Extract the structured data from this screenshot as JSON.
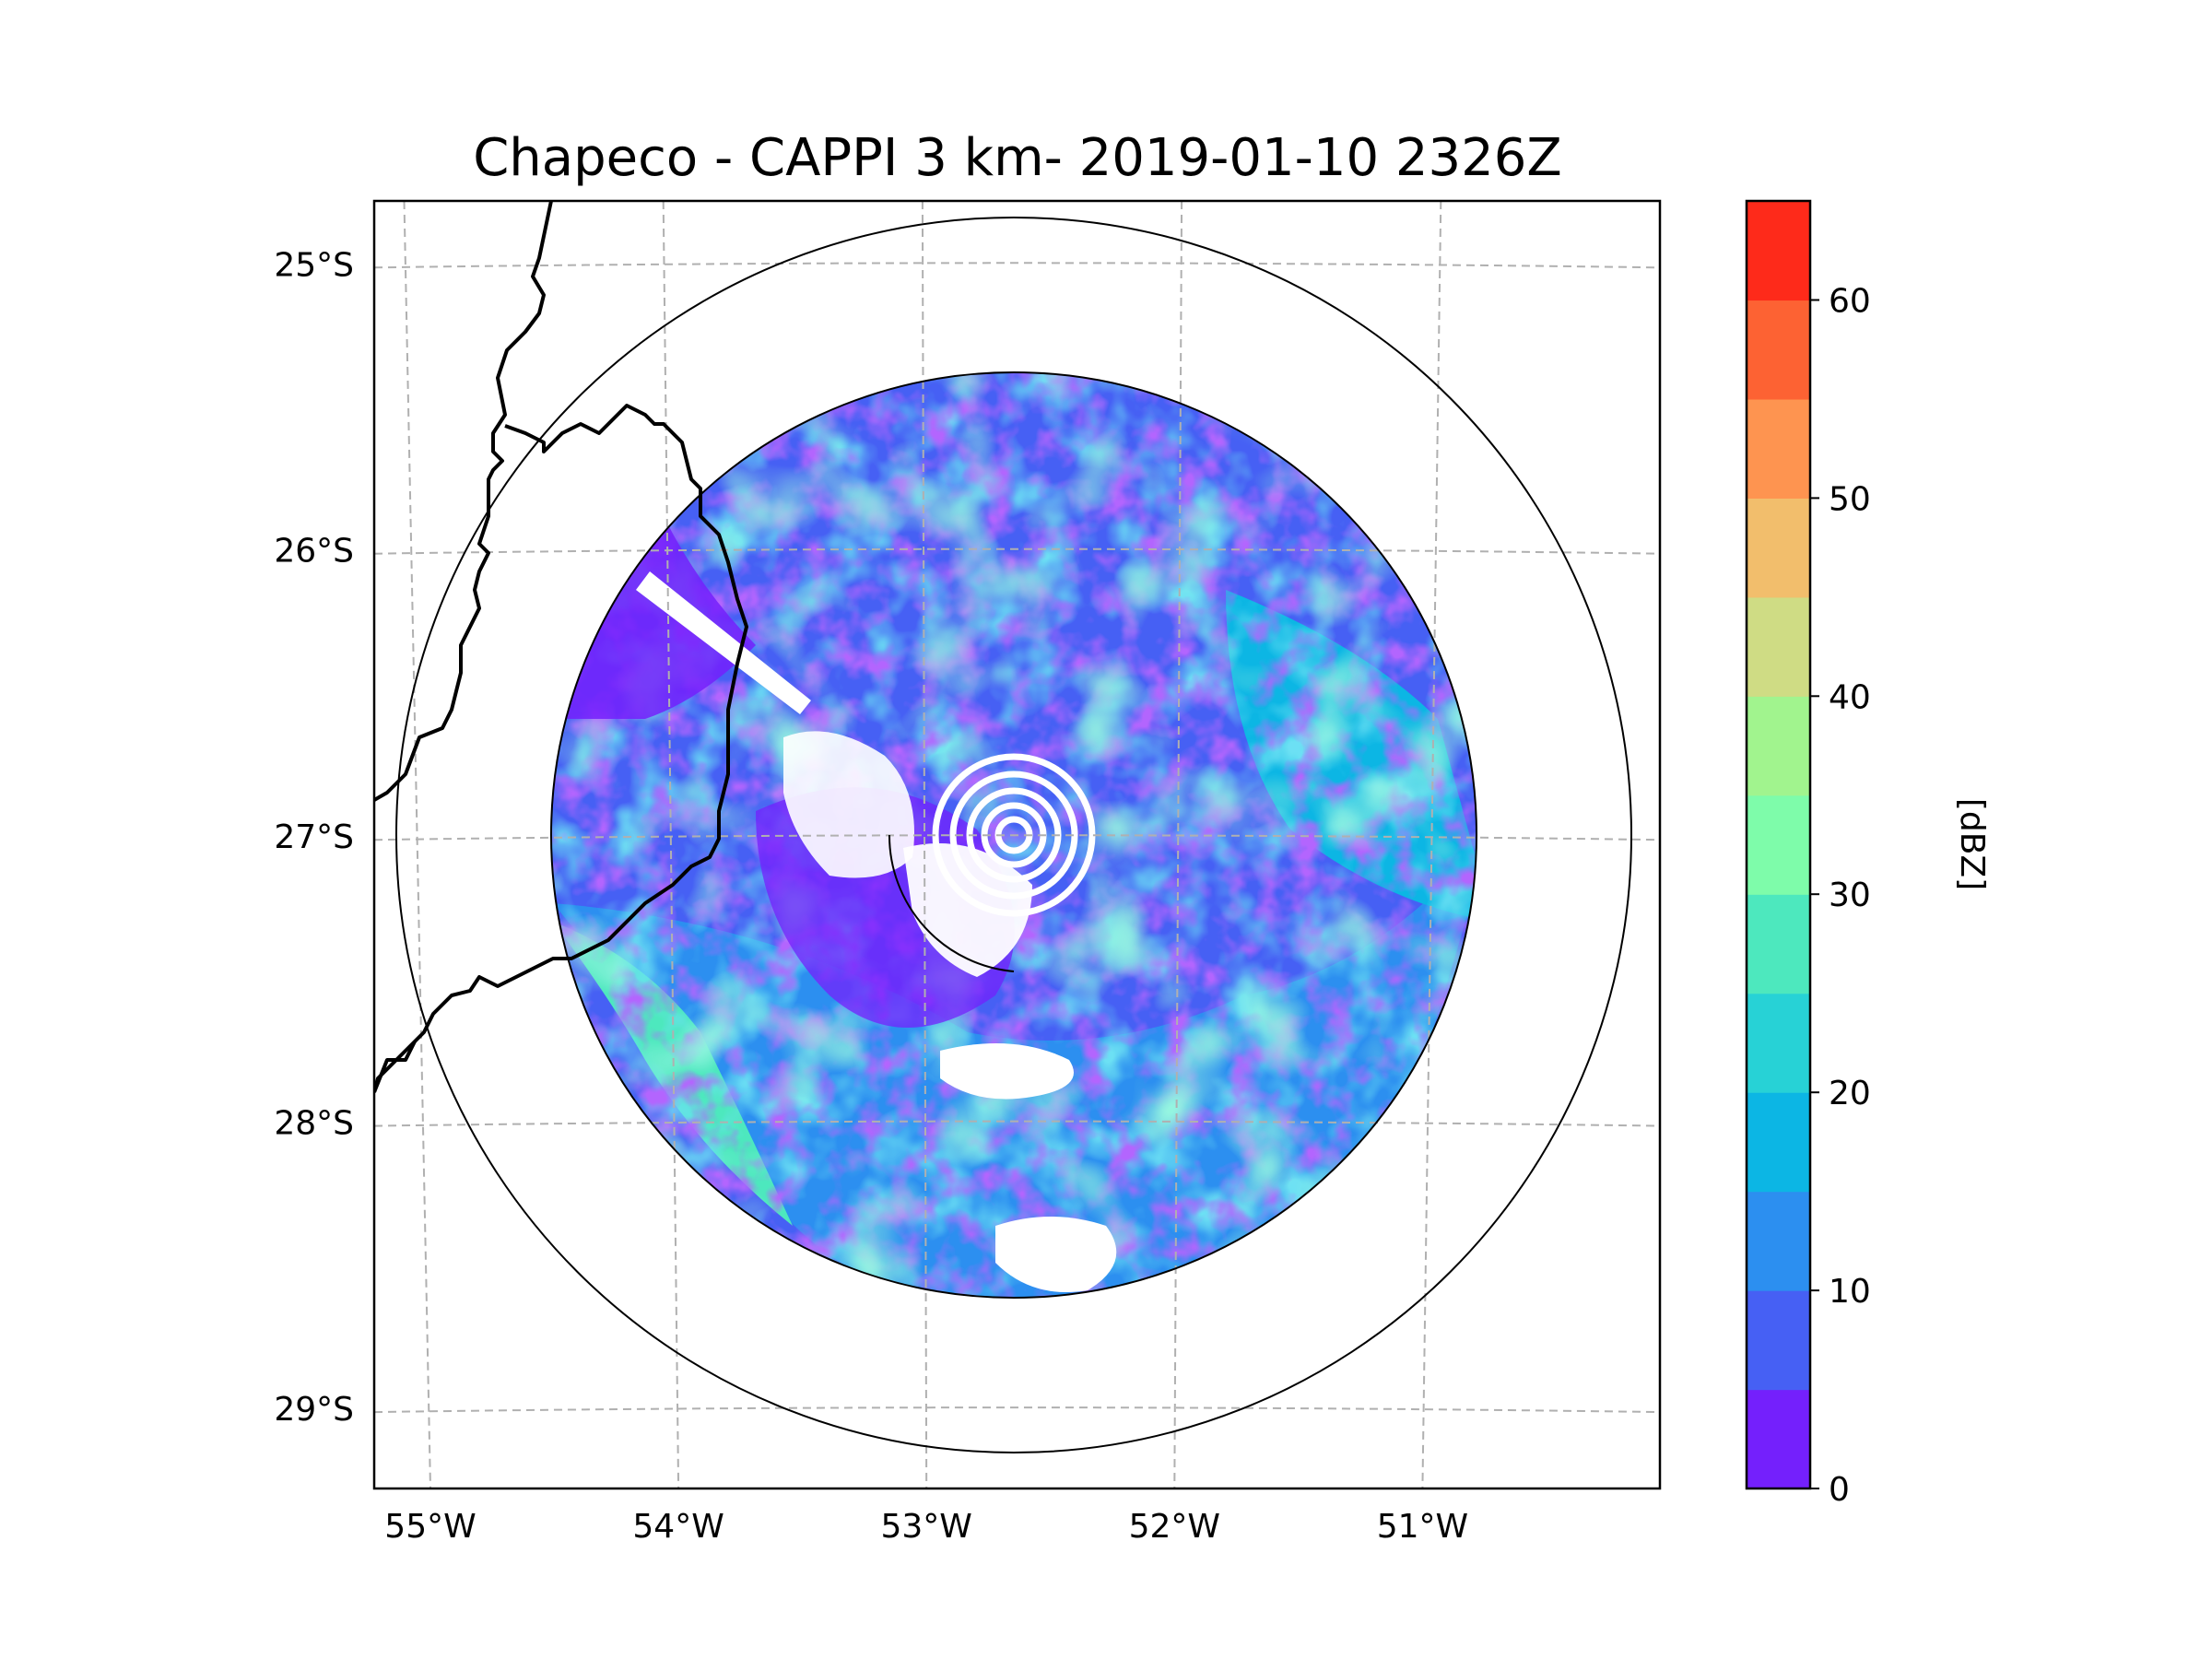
{
  "chart_data": {
    "type": "heatmap",
    "title": "Chapeco - CAPPI 3 km- 2019-01-10 2326Z",
    "xlabel": "",
    "ylabel": "",
    "x_ticks": [
      {
        "value": -55,
        "label": "55°W"
      },
      {
        "value": -54,
        "label": "54°W"
      },
      {
        "value": -53,
        "label": "53°W"
      },
      {
        "value": -52,
        "label": "52°W"
      },
      {
        "value": -51,
        "label": "51°W"
      }
    ],
    "y_ticks": [
      {
        "value": -25,
        "label": "25°S"
      },
      {
        "value": -26,
        "label": "26°S"
      },
      {
        "value": -27,
        "label": "27°S"
      },
      {
        "value": -28,
        "label": "28°S"
      },
      {
        "value": -29,
        "label": "29°S"
      }
    ],
    "xlim": [
      -55.17,
      -50.1
    ],
    "ylim": [
      -29.28,
      -24.78
    ],
    "grid": true,
    "radar_center": {
      "lon": -52.6,
      "lat": -27.03
    },
    "range_rings_deg": [
      1.85,
      2.45
    ],
    "colorbar": {
      "label": "[dBZ]",
      "range": [
        0,
        65
      ],
      "ticks": [
        0,
        10,
        20,
        30,
        40,
        50,
        60
      ],
      "levels": [
        0,
        5,
        10,
        15,
        20,
        25,
        30,
        35,
        40,
        45,
        50,
        55,
        60,
        65
      ],
      "colors": [
        "#7420fc",
        "#4660f4",
        "#2c8ff0",
        "#0cb6e4",
        "#27d2d6",
        "#4de8be",
        "#7efcaa",
        "#a1f48e",
        "#cfdc84",
        "#f2be6c",
        "#fe9450",
        "#fd6233",
        "#fe2a1a"
      ]
    },
    "field_description": "Reflectivity mostly 0-35 dBZ, widespread 5-25 dBZ within radar range; clutter rings near center"
  },
  "colors": {
    "axes": "#000000",
    "grid": "#b0b0b0",
    "background": "#ffffff"
  }
}
